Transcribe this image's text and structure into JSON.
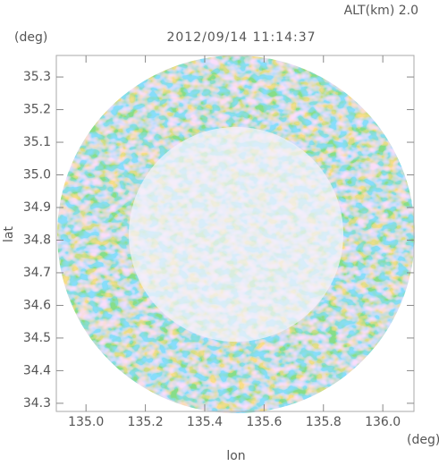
{
  "chart_data": {
    "type": "image",
    "title": "2012/09/14 11:14:37",
    "subtitle": "ALT(km)  2.0",
    "x_label": "lon",
    "x_unit": "(deg)",
    "y_label": "lat",
    "y_unit": "(deg)",
    "xlim": [
      134.9,
      136.105
    ],
    "ylim": [
      34.275,
      35.366
    ],
    "xticks": [
      {
        "value": 135.0,
        "label": "135.0"
      },
      135.2,
      135.4,
      135.6,
      135.8,
      {
        "value": 136.0,
        "label": "136.0"
      }
    ],
    "yticks": [
      34.3,
      34.4,
      34.5,
      34.6,
      34.7,
      34.8,
      34.9,
      {
        "value": 35.0,
        "label": "35.0"
      },
      35.1,
      35.2,
      35.3
    ]
  }
}
